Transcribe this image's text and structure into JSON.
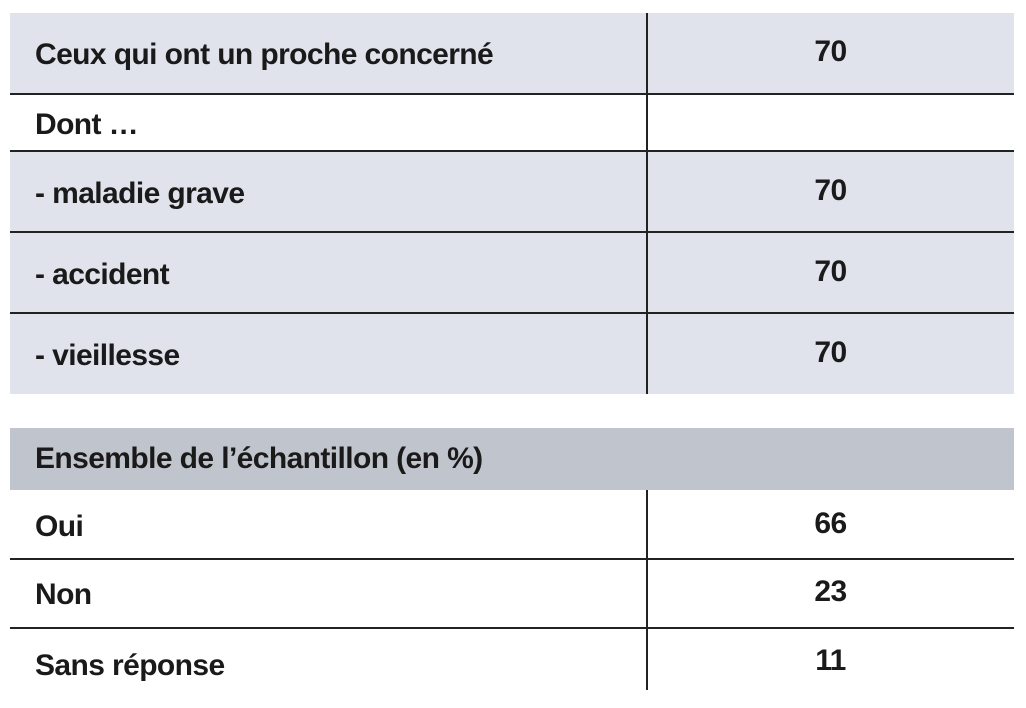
{
  "table1": {
    "rows": [
      {
        "label": "Ceux qui ont un proche concerné",
        "value": "70"
      },
      {
        "label": "Dont …",
        "value": ""
      },
      {
        "label": "- maladie grave",
        "value": "70"
      },
      {
        "label": "- accident",
        "value": "70"
      },
      {
        "label": "- vieillesse",
        "value": "70"
      }
    ]
  },
  "table2": {
    "header": "Ensemble de l’échantillon (en  %)",
    "rows": [
      {
        "label": "Oui",
        "value": "66"
      },
      {
        "label": "Non",
        "value": "23"
      },
      {
        "label": "Sans réponse",
        "value": "11"
      }
    ]
  },
  "colors": {
    "row_shade": "#e0e3ec",
    "header_shade": "#c0c4cc",
    "rule": "#222222"
  }
}
